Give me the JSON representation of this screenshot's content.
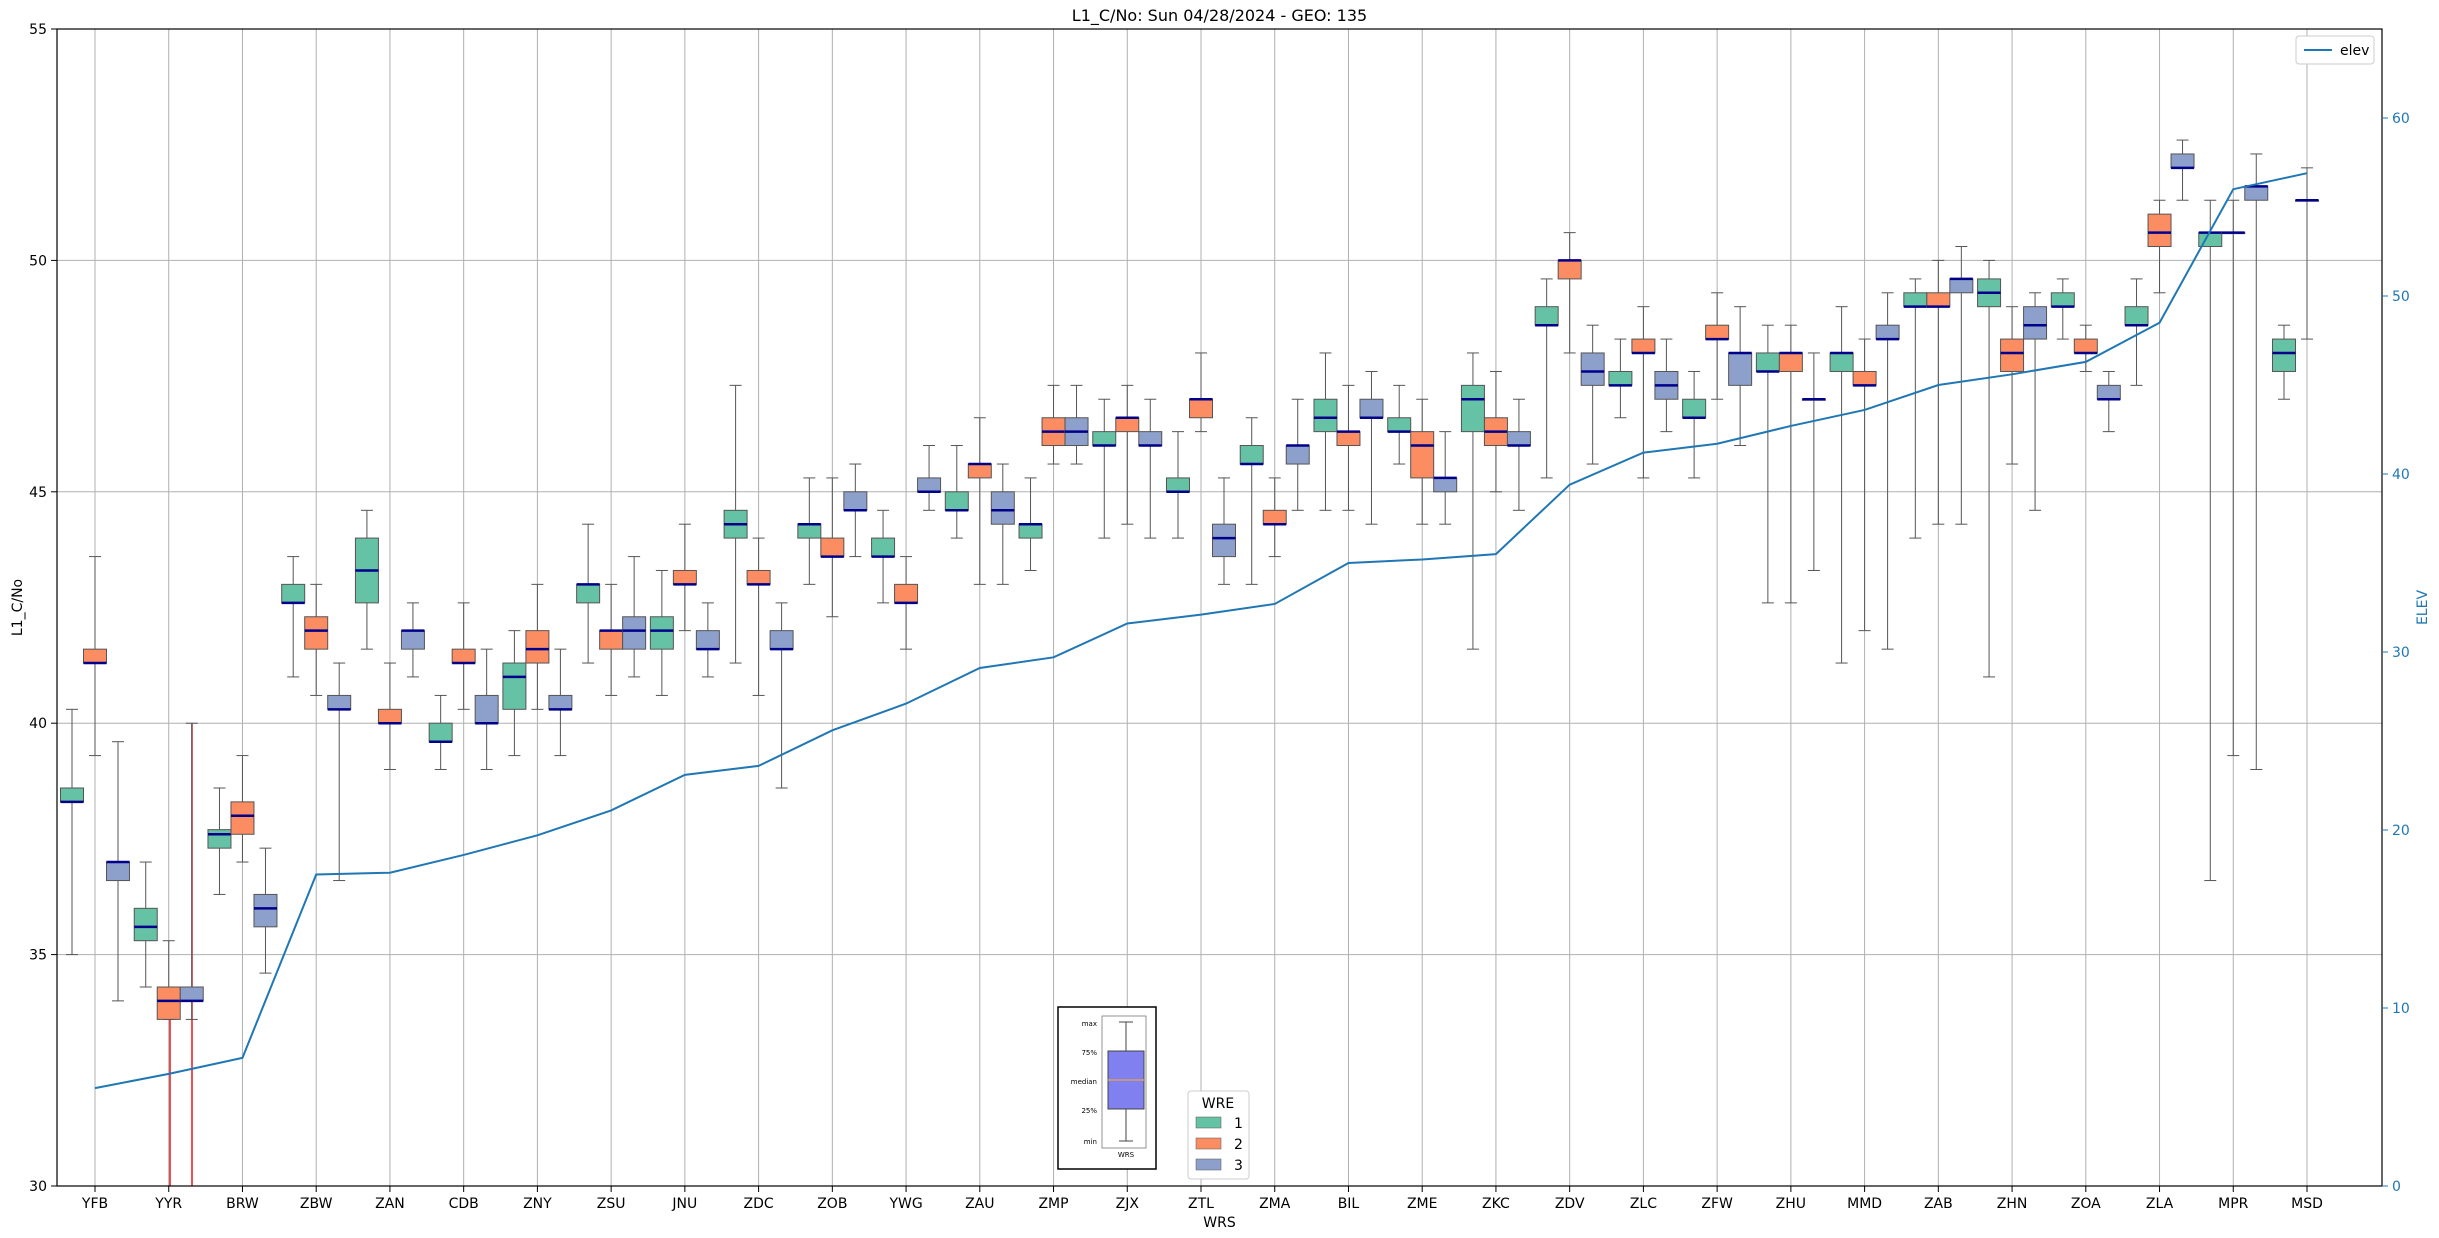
{
  "chart_data": {
    "type": "boxplot",
    "title": "L1_C/No: Sun 04/28/2024 - GEO: 135",
    "xlabel": "WRS",
    "ylabel": "L1_C/No",
    "y2label": "ELEV",
    "ylim": [
      30,
      55
    ],
    "y2lim": [
      0,
      65
    ],
    "yticks": [
      "30",
      "35",
      "40",
      "45",
      "50",
      "55"
    ],
    "y2ticks": [
      "0",
      "10",
      "20",
      "30",
      "40",
      "50",
      "60"
    ],
    "grid": true,
    "categories": [
      "YFB",
      "YYR",
      "BRW",
      "ZBW",
      "ZAN",
      "CDB",
      "ZNY",
      "ZSU",
      "JNU",
      "ZDC",
      "ZOB",
      "YWG",
      "ZAU",
      "ZMP",
      "ZJX",
      "ZTL",
      "ZMA",
      "BIL",
      "ZME",
      "ZKC",
      "ZDV",
      "ZLC",
      "ZFW",
      "ZHU",
      "MMD",
      "ZAB",
      "ZHN",
      "ZOA",
      "ZLA",
      "MPR",
      "MSD"
    ],
    "legend_title": "WRE",
    "series": [
      {
        "name": "1",
        "color": "#66c2a5",
        "boxes": [
          [
            35.0,
            38.3,
            38.3,
            38.6,
            40.3
          ],
          [
            34.3,
            35.3,
            35.6,
            36.0,
            37.0
          ],
          [
            36.3,
            37.3,
            37.6,
            37.7,
            38.6
          ],
          [
            41.0,
            42.6,
            42.6,
            43.0,
            43.6
          ],
          [
            41.6,
            42.6,
            43.3,
            44.0,
            44.6
          ],
          [
            39.0,
            39.6,
            39.6,
            40.0,
            40.6
          ],
          [
            39.3,
            40.3,
            41.0,
            41.3,
            42.0
          ],
          [
            41.3,
            42.6,
            43.0,
            43.0,
            44.3
          ],
          [
            40.6,
            41.6,
            42.0,
            42.3,
            43.3
          ],
          [
            41.3,
            44.0,
            44.3,
            44.6,
            47.3
          ],
          [
            43.0,
            44.0,
            44.3,
            44.3,
            45.3
          ],
          [
            42.6,
            43.6,
            43.6,
            44.0,
            44.6
          ],
          [
            44.0,
            44.6,
            44.6,
            45.0,
            46.0
          ],
          [
            43.3,
            44.0,
            44.3,
            44.3,
            45.3
          ],
          [
            44.0,
            46.0,
            46.0,
            46.3,
            47.0
          ],
          [
            44.0,
            45.0,
            45.0,
            45.3,
            46.3
          ],
          [
            43.0,
            45.6,
            45.6,
            46.0,
            46.6
          ],
          [
            44.6,
            46.3,
            46.6,
            47.0,
            48.0
          ],
          [
            45.6,
            46.3,
            46.3,
            46.6,
            47.3
          ],
          [
            41.6,
            46.3,
            47.0,
            47.3,
            48.0
          ],
          [
            45.3,
            48.6,
            48.6,
            49.0,
            49.6
          ],
          [
            46.6,
            47.3,
            47.3,
            47.6,
            48.3
          ],
          [
            45.3,
            46.6,
            46.6,
            47.0,
            47.6
          ],
          [
            42.6,
            47.6,
            47.6,
            48.0,
            48.6
          ],
          [
            41.3,
            47.6,
            48.0,
            48.0,
            49.0
          ],
          [
            44.0,
            49.0,
            49.0,
            49.3,
            49.6
          ],
          [
            41.0,
            49.0,
            49.3,
            49.6,
            50.0
          ],
          [
            48.3,
            49.0,
            49.0,
            49.3,
            49.6
          ],
          [
            47.3,
            48.6,
            48.6,
            49.0,
            49.6
          ],
          [
            36.6,
            50.3,
            50.6,
            50.6,
            51.3
          ],
          [
            47.0,
            47.6,
            48.0,
            48.3,
            48.6
          ]
        ]
      },
      {
        "name": "2",
        "color": "#fc8d62",
        "boxes": [
          [
            39.3,
            41.3,
            41.3,
            41.6,
            43.6
          ],
          [
            33.6,
            33.6,
            34.0,
            34.3,
            35.3
          ],
          [
            37.0,
            37.6,
            38.0,
            38.3,
            39.3
          ],
          [
            40.6,
            41.6,
            42.0,
            42.3,
            43.0
          ],
          [
            39.0,
            40.0,
            40.0,
            40.3,
            41.3
          ],
          [
            40.3,
            41.3,
            41.3,
            41.6,
            42.6
          ],
          [
            40.3,
            41.3,
            41.6,
            42.0,
            43.0
          ],
          [
            40.6,
            41.6,
            42.0,
            42.0,
            43.0
          ],
          [
            42.0,
            43.0,
            43.0,
            43.3,
            44.3
          ],
          [
            40.6,
            43.0,
            43.0,
            43.3,
            44.0
          ],
          [
            42.3,
            43.6,
            43.6,
            44.0,
            45.3
          ],
          [
            41.6,
            42.6,
            42.6,
            43.0,
            43.6
          ],
          [
            43.0,
            45.3,
            45.6,
            45.6,
            46.6
          ],
          [
            45.6,
            46.0,
            46.3,
            46.6,
            47.3
          ],
          [
            44.3,
            46.3,
            46.6,
            46.6,
            47.3
          ],
          [
            46.3,
            46.6,
            47.0,
            47.0,
            48.0
          ],
          [
            43.6,
            44.3,
            44.3,
            44.6,
            45.3
          ],
          [
            44.6,
            46.0,
            46.3,
            46.3,
            47.3
          ],
          [
            44.3,
            45.3,
            46.0,
            46.3,
            47.0
          ],
          [
            45.0,
            46.0,
            46.3,
            46.6,
            47.6
          ],
          [
            48.0,
            49.6,
            50.0,
            50.0,
            50.6
          ],
          [
            45.3,
            48.0,
            48.0,
            48.3,
            49.0
          ],
          [
            47.0,
            48.3,
            48.3,
            48.6,
            49.3
          ],
          [
            42.6,
            47.6,
            48.0,
            48.0,
            48.6
          ],
          [
            42.0,
            47.3,
            47.3,
            47.6,
            48.3
          ],
          [
            44.3,
            49.0,
            49.0,
            49.3,
            50.0
          ],
          [
            45.6,
            47.6,
            48.0,
            48.3,
            49.0
          ],
          [
            47.6,
            48.0,
            48.0,
            48.3,
            48.6
          ],
          [
            49.3,
            50.3,
            50.6,
            51.0,
            51.3
          ],
          [
            39.3,
            50.6,
            50.6,
            50.6,
            51.3
          ],
          [
            48.3,
            51.3,
            51.3,
            51.3,
            52.0
          ]
        ]
      },
      {
        "name": "3",
        "color": "#8da0cb",
        "boxes": [
          [
            34.0,
            36.6,
            37.0,
            37.0,
            39.6
          ],
          [
            33.6,
            34.0,
            34.0,
            34.3,
            40.0
          ],
          [
            34.6,
            35.6,
            36.0,
            36.3,
            37.3
          ],
          [
            36.6,
            40.3,
            40.3,
            40.6,
            41.3
          ],
          [
            41.0,
            41.6,
            42.0,
            42.0,
            42.6
          ],
          [
            39.0,
            40.0,
            40.0,
            40.6,
            41.6
          ],
          [
            39.3,
            40.3,
            40.3,
            40.6,
            41.6
          ],
          [
            41.0,
            41.6,
            42.0,
            42.3,
            43.6
          ],
          [
            41.0,
            41.6,
            41.6,
            42.0,
            42.6
          ],
          [
            38.6,
            41.6,
            41.6,
            42.0,
            42.6
          ],
          [
            43.6,
            44.6,
            44.6,
            45.0,
            45.6
          ],
          [
            44.6,
            45.0,
            45.0,
            45.3,
            46.0
          ],
          [
            43.0,
            44.3,
            44.6,
            45.0,
            45.6
          ],
          [
            45.6,
            46.0,
            46.3,
            46.6,
            47.3
          ],
          [
            44.0,
            46.0,
            46.0,
            46.3,
            47.0
          ],
          [
            43.0,
            43.6,
            44.0,
            44.3,
            45.3
          ],
          [
            44.6,
            45.6,
            46.0,
            46.0,
            47.0
          ],
          [
            44.3,
            46.6,
            46.6,
            47.0,
            47.6
          ],
          [
            44.3,
            45.0,
            45.3,
            45.3,
            46.3
          ],
          [
            44.6,
            46.0,
            46.0,
            46.3,
            47.0
          ],
          [
            45.6,
            47.3,
            47.6,
            48.0,
            48.6
          ],
          [
            46.3,
            47.0,
            47.3,
            47.6,
            48.3
          ],
          [
            46.0,
            47.3,
            48.0,
            48.0,
            49.0
          ],
          [
            43.3,
            47.0,
            47.0,
            47.0,
            48.0
          ],
          [
            41.6,
            48.3,
            48.3,
            48.6,
            49.3
          ],
          [
            44.3,
            49.3,
            49.6,
            49.6,
            50.3
          ],
          [
            44.6,
            48.3,
            48.6,
            49.0,
            49.3
          ],
          [
            46.3,
            47.0,
            47.0,
            47.3,
            47.6
          ],
          [
            51.3,
            52.0,
            52.0,
            52.3,
            52.6
          ],
          [
            39.0,
            51.3,
            51.6,
            51.6,
            52.3
          ],
          null
        ]
      }
    ],
    "elev_series": {
      "name": "elev",
      "color": "#1f77b4",
      "values": [
        5.5,
        6.3,
        7.2,
        17.5,
        17.6,
        18.6,
        19.7,
        21.1,
        23.1,
        23.6,
        25.6,
        27.1,
        29.1,
        29.7,
        31.6,
        32.1,
        32.7,
        35.0,
        35.2,
        35.5,
        39.4,
        41.2,
        41.7,
        42.7,
        43.6,
        45.0,
        45.6,
        46.3,
        48.5,
        56.0,
        56.9
      ]
    },
    "inset": {
      "labels": [
        "max",
        "75%",
        "median",
        "25%",
        "min"
      ],
      "sublabel": "WRS"
    }
  }
}
